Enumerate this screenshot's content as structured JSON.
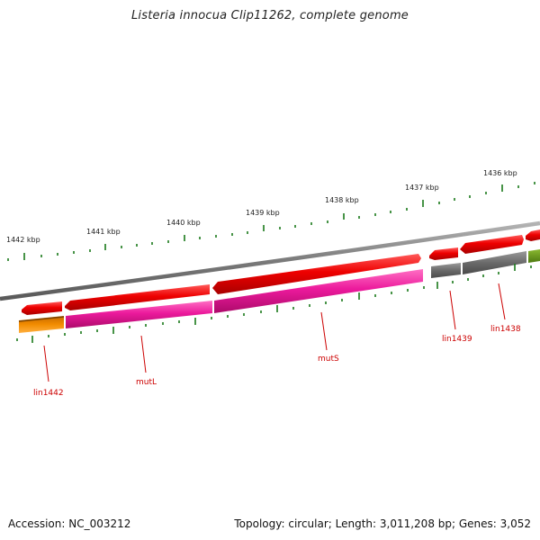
{
  "title": "Listeria innocua Clip11262, complete genome",
  "footer": {
    "accession": "Accession: NC_003212",
    "stats": "Topology: circular; Length: 3,011,208 bp; Genes: 3,052"
  },
  "scale_labels": [
    "1442 kbp",
    "1441 kbp",
    "1440 kbp",
    "1439 kbp",
    "1438 kbp",
    "1437 kbp",
    "1436 kbp"
  ],
  "gene_labels": [
    "lin1442",
    "mutL",
    "mutS",
    "lin1439",
    "lin1438"
  ],
  "colors": {
    "backbone": "#8c8c8c",
    "forward_strand_cds": "#e00000",
    "reverse_track_orange": "#f08a00",
    "reverse_track_magenta": "#e8189c",
    "reverse_track_gray": "#6e6e6e",
    "reverse_track_olive": "#6a9a1a",
    "ticks": "#1a7a1a",
    "labels": "#cc0000"
  }
}
